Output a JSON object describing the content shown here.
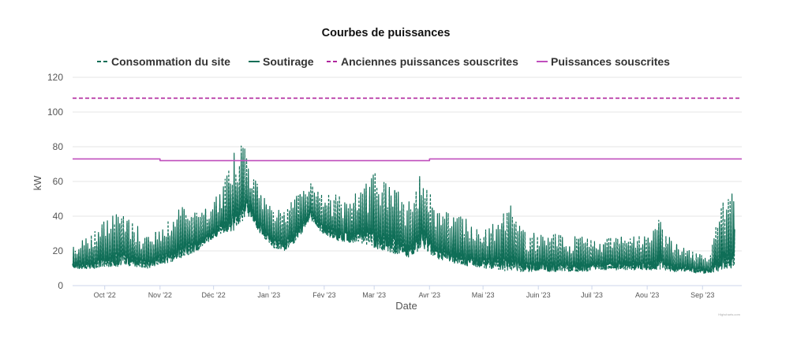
{
  "chart_data": {
    "type": "line",
    "title": "Courbes de puissances",
    "xlabel": "Date",
    "ylabel": "kW",
    "ylim": [
      0,
      120
    ],
    "yticks": [
      0,
      20,
      40,
      60,
      80,
      100,
      120
    ],
    "xticks": [
      "Oct '22",
      "Nov '22",
      "Déc '22",
      "Jan '23",
      "Fév '23",
      "Mar '23",
      "Avr '23",
      "Mai '23",
      "Juin '23",
      "Juil '23",
      "Aou '23",
      "Sep '23"
    ],
    "x_range": [
      "2022-09-13",
      "2023-09-23"
    ],
    "grid": "horizontal",
    "legend": "top",
    "credit": "Highcharts.com",
    "series": [
      {
        "name": "Consommation du site",
        "style": "dashed",
        "color": "#0f6e57",
        "points": [
          [
            "2022-09-13",
            10,
            22
          ],
          [
            "2022-09-20",
            9,
            28
          ],
          [
            "2022-09-27",
            10,
            34
          ],
          [
            "2022-10-04",
            11,
            40
          ],
          [
            "2022-10-11",
            11,
            42
          ],
          [
            "2022-10-18",
            11,
            36
          ],
          [
            "2022-10-25",
            10,
            30
          ],
          [
            "2022-11-01",
            12,
            33
          ],
          [
            "2022-11-08",
            14,
            40
          ],
          [
            "2022-11-15",
            17,
            49
          ],
          [
            "2022-11-22",
            20,
            42
          ],
          [
            "2022-11-29",
            26,
            46
          ],
          [
            "2022-12-06",
            30,
            57
          ],
          [
            "2022-12-13",
            32,
            80
          ],
          [
            "2022-12-20",
            40,
            81
          ],
          [
            "2022-12-27",
            30,
            55
          ],
          [
            "2023-01-03",
            22,
            45
          ],
          [
            "2023-01-10",
            20,
            42
          ],
          [
            "2023-01-17",
            26,
            55
          ],
          [
            "2023-01-24",
            38,
            60
          ],
          [
            "2023-01-31",
            30,
            52
          ],
          [
            "2023-02-07",
            26,
            55
          ],
          [
            "2023-02-14",
            25,
            50
          ],
          [
            "2023-02-21",
            24,
            55
          ],
          [
            "2023-02-28",
            22,
            67
          ],
          [
            "2023-03-07",
            20,
            60
          ],
          [
            "2023-03-14",
            18,
            55
          ],
          [
            "2023-03-21",
            16,
            48
          ],
          [
            "2023-03-28",
            22,
            68
          ],
          [
            "2023-04-04",
            16,
            45
          ],
          [
            "2023-04-11",
            14,
            42
          ],
          [
            "2023-04-18",
            12,
            40
          ],
          [
            "2023-04-25",
            11,
            38
          ],
          [
            "2023-05-02",
            10,
            36
          ],
          [
            "2023-05-09",
            9,
            38
          ],
          [
            "2023-05-16",
            8,
            47
          ],
          [
            "2023-05-23",
            8,
            33
          ],
          [
            "2023-05-30",
            8,
            30
          ],
          [
            "2023-06-06",
            8,
            30
          ],
          [
            "2023-06-13",
            8,
            30
          ],
          [
            "2023-06-20",
            8,
            29
          ],
          [
            "2023-06-27",
            8,
            28
          ],
          [
            "2023-07-04",
            9,
            25
          ],
          [
            "2023-07-11",
            9,
            28
          ],
          [
            "2023-07-18",
            9,
            29
          ],
          [
            "2023-07-25",
            9,
            30
          ],
          [
            "2023-08-01",
            9,
            28
          ],
          [
            "2023-08-08",
            9,
            39
          ],
          [
            "2023-08-15",
            8,
            25
          ],
          [
            "2023-08-22",
            8,
            22
          ],
          [
            "2023-08-29",
            7,
            20
          ],
          [
            "2023-09-05",
            7,
            18
          ],
          [
            "2023-09-12",
            9,
            50
          ],
          [
            "2023-09-19",
            10,
            55
          ]
        ]
      },
      {
        "name": "Soutirage",
        "style": "solid",
        "color": "#0f6e57",
        "points": [
          [
            "2022-09-13",
            10,
            22
          ],
          [
            "2022-09-20",
            9,
            28
          ],
          [
            "2022-09-27",
            10,
            34
          ],
          [
            "2022-10-04",
            11,
            40
          ],
          [
            "2022-10-11",
            11,
            42
          ],
          [
            "2022-10-18",
            11,
            36
          ],
          [
            "2022-10-25",
            10,
            30
          ],
          [
            "2022-11-01",
            12,
            33
          ],
          [
            "2022-11-08",
            14,
            40
          ],
          [
            "2022-11-15",
            17,
            49
          ],
          [
            "2022-11-22",
            20,
            42
          ],
          [
            "2022-11-29",
            26,
            46
          ],
          [
            "2022-12-06",
            30,
            57
          ],
          [
            "2022-12-13",
            32,
            80
          ],
          [
            "2022-12-20",
            40,
            81
          ],
          [
            "2022-12-27",
            30,
            55
          ],
          [
            "2023-01-03",
            22,
            45
          ],
          [
            "2023-01-10",
            20,
            42
          ],
          [
            "2023-01-17",
            26,
            55
          ],
          [
            "2023-01-24",
            38,
            60
          ],
          [
            "2023-01-31",
            30,
            52
          ],
          [
            "2023-02-07",
            26,
            55
          ],
          [
            "2023-02-14",
            25,
            50
          ],
          [
            "2023-02-21",
            24,
            55
          ],
          [
            "2023-02-28",
            22,
            67
          ],
          [
            "2023-03-07",
            20,
            60
          ],
          [
            "2023-03-14",
            18,
            55
          ],
          [
            "2023-03-21",
            16,
            48
          ],
          [
            "2023-03-28",
            22,
            68
          ],
          [
            "2023-04-04",
            16,
            45
          ],
          [
            "2023-04-11",
            14,
            42
          ],
          [
            "2023-04-18",
            12,
            40
          ],
          [
            "2023-04-25",
            11,
            38
          ],
          [
            "2023-05-02",
            10,
            36
          ],
          [
            "2023-05-09",
            9,
            38
          ],
          [
            "2023-05-16",
            8,
            47
          ],
          [
            "2023-05-23",
            8,
            33
          ],
          [
            "2023-05-30",
            8,
            30
          ],
          [
            "2023-06-06",
            8,
            30
          ],
          [
            "2023-06-13",
            8,
            30
          ],
          [
            "2023-06-20",
            8,
            29
          ],
          [
            "2023-06-27",
            8,
            28
          ],
          [
            "2023-07-04",
            9,
            25
          ],
          [
            "2023-07-11",
            9,
            28
          ],
          [
            "2023-07-18",
            9,
            29
          ],
          [
            "2023-07-25",
            9,
            30
          ],
          [
            "2023-08-01",
            9,
            28
          ],
          [
            "2023-08-08",
            9,
            39
          ],
          [
            "2023-08-15",
            8,
            25
          ],
          [
            "2023-08-22",
            8,
            22
          ],
          [
            "2023-08-29",
            7,
            20
          ],
          [
            "2023-09-05",
            7,
            18
          ],
          [
            "2023-09-12",
            9,
            50
          ],
          [
            "2023-09-19",
            10,
            55
          ]
        ]
      },
      {
        "name": "Anciennes puissances souscrites",
        "style": "dashed",
        "color": "#b0279e",
        "points": [
          [
            "2022-09-13",
            108
          ],
          [
            "2023-09-23",
            108
          ]
        ]
      },
      {
        "name": "Puissances souscrites",
        "style": "solid",
        "color": "#c04fbd",
        "points": [
          [
            "2022-09-13",
            73
          ],
          [
            "2022-11-01",
            73
          ],
          [
            "2022-11-01",
            72
          ],
          [
            "2023-04-01",
            72
          ],
          [
            "2023-04-01",
            73
          ],
          [
            "2023-09-23",
            73
          ]
        ]
      }
    ]
  }
}
